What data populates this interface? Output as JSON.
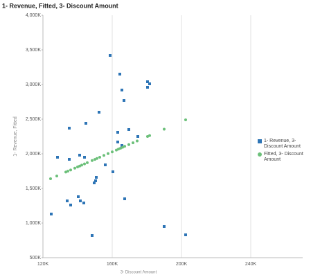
{
  "chart_data": {
    "type": "scatter",
    "title": "1- Revenue, Fitted, 3- Discount Amount",
    "y_label": "1- Revenue, Fitted",
    "x_label": "3- Discount Amount",
    "xlim": [
      120000,
      270000
    ],
    "xticks": [
      {
        "value": 120000,
        "label": "120K"
      },
      {
        "value": 160000,
        "label": "160K"
      },
      {
        "value": 200000,
        "label": "200K"
      },
      {
        "value": 240000,
        "label": "240K"
      }
    ],
    "ylim": [
      500000,
      4000000
    ],
    "yticks": [
      {
        "value": 500000,
        "label": "500K"
      },
      {
        "value": 1000000,
        "label": "1,000K"
      },
      {
        "value": 1500000,
        "label": "1,500K"
      },
      {
        "value": 2000000,
        "label": "2,000K"
      },
      {
        "value": 2500000,
        "label": "2,500K"
      },
      {
        "value": 3000000,
        "label": "3,000K"
      },
      {
        "value": 3500000,
        "label": "3,500K"
      },
      {
        "value": 4000000,
        "label": "4,000K"
      }
    ],
    "grid": true,
    "legend": "right",
    "series": [
      {
        "name": "1- Revenue, 3- Discount Amount",
        "color": "#2e75b6",
        "marker": "square",
        "x": [
          158800,
          164400,
          165600,
          166800,
          180400,
          181600,
          180400,
          152400,
          144800,
          135200,
          163200,
          169600,
          174800,
          163200,
          165600,
          128400,
          135200,
          141200,
          144000,
          156000,
          160400,
          150800,
          150400,
          149600,
          140400,
          141600,
          134000,
          143600,
          136000,
          167200,
          124800,
          190000,
          148400,
          202400
        ],
        "values": [
          3420000,
          3150000,
          2920000,
          2770000,
          3040000,
          3010000,
          2960000,
          2600000,
          2440000,
          2370000,
          2310000,
          2350000,
          2250000,
          2170000,
          2120000,
          1950000,
          1920000,
          1980000,
          1950000,
          1840000,
          1740000,
          1660000,
          1610000,
          1580000,
          1380000,
          1320000,
          1320000,
          1290000,
          1260000,
          1350000,
          1130000,
          950000,
          820000,
          830000
        ]
      },
      {
        "name": "Fitted, 3- Discount Amount",
        "color": "#6cc07a",
        "marker": "circle",
        "x": [
          124400,
          128000,
          133200,
          134400,
          136000,
          138400,
          140000,
          141200,
          142400,
          144000,
          145600,
          148400,
          150000,
          151200,
          152800,
          155200,
          157600,
          160000,
          162400,
          163600,
          164800,
          166000,
          167200,
          169600,
          172000,
          174400,
          180400,
          181600,
          190000,
          202400
        ],
        "values": [
          1640000,
          1679000,
          1736000,
          1749000,
          1766000,
          1793000,
          1810000,
          1823000,
          1836000,
          1854000,
          1871000,
          1902000,
          1919000,
          1932000,
          1950000,
          1976000,
          2002000,
          2028000,
          2054000,
          2068000,
          2080000,
          2094000,
          2107000,
          2133000,
          2159000,
          2185000,
          2250000,
          2263000,
          2355000,
          2490000
        ]
      }
    ]
  }
}
